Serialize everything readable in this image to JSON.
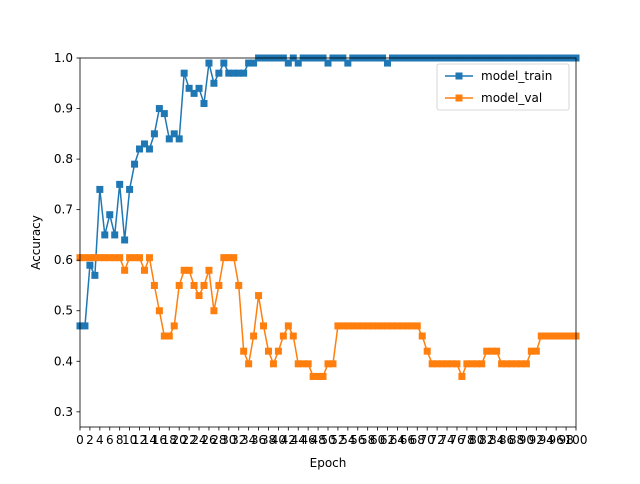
{
  "chart_data": {
    "type": "line",
    "title": "",
    "xlabel": "Epoch",
    "ylabel": "Accuracy",
    "xlim": [
      0,
      100
    ],
    "ylim": [
      0.27,
      1.0
    ],
    "y_ticks": [
      0.3,
      0.4,
      0.5,
      0.6,
      0.7,
      0.8,
      0.9,
      1.0
    ],
    "y_tick_labels": [
      "0.3",
      "0.4",
      "0.5",
      "0.6",
      "0.7",
      "0.8",
      "0.9",
      "1.0"
    ],
    "x_tick_step": 2,
    "grid": false,
    "legend_position": "top-right",
    "x": [
      0,
      1,
      2,
      3,
      4,
      5,
      6,
      7,
      8,
      9,
      10,
      11,
      12,
      13,
      14,
      15,
      16,
      17,
      18,
      19,
      20,
      21,
      22,
      23,
      24,
      25,
      26,
      27,
      28,
      29,
      30,
      31,
      32,
      33,
      34,
      35,
      36,
      37,
      38,
      39,
      40,
      41,
      42,
      43,
      44,
      45,
      46,
      47,
      48,
      49,
      50,
      51,
      52,
      53,
      54,
      55,
      56,
      57,
      58,
      59,
      60,
      61,
      62,
      63,
      64,
      65,
      66,
      67,
      68,
      69,
      70,
      71,
      72,
      73,
      74,
      75,
      76,
      77,
      78,
      79,
      80,
      81,
      82,
      83,
      84,
      85,
      86,
      87,
      88,
      89,
      90,
      91,
      92,
      93,
      94,
      95,
      96,
      97,
      98,
      99,
      100
    ],
    "series": [
      {
        "name": "model_train",
        "color": "#1f77b4",
        "marker": "square",
        "values": [
          0.47,
          0.47,
          0.59,
          0.57,
          0.74,
          0.65,
          0.69,
          0.65,
          0.75,
          0.64,
          0.74,
          0.79,
          0.82,
          0.83,
          0.82,
          0.85,
          0.9,
          0.89,
          0.84,
          0.85,
          0.84,
          0.97,
          0.94,
          0.93,
          0.94,
          0.91,
          0.99,
          0.95,
          0.97,
          0.99,
          0.97,
          0.97,
          0.97,
          0.97,
          0.99,
          0.99,
          1.0,
          1.0,
          1.0,
          1.0,
          1.0,
          1.0,
          0.99,
          1.0,
          0.99,
          1.0,
          1.0,
          1.0,
          1.0,
          1.0,
          0.99,
          1.0,
          1.0,
          1.0,
          0.99,
          1.0,
          1.0,
          1.0,
          1.0,
          1.0,
          1.0,
          1.0,
          0.99,
          1.0,
          1.0,
          1.0,
          1.0,
          1.0,
          1.0,
          1.0,
          1.0,
          1.0,
          1.0,
          1.0,
          1.0,
          1.0,
          1.0,
          1.0,
          1.0,
          1.0,
          1.0,
          1.0,
          1.0,
          1.0,
          1.0,
          1.0,
          1.0,
          1.0,
          1.0,
          1.0,
          1.0,
          1.0,
          1.0,
          1.0,
          1.0,
          1.0,
          1.0,
          1.0,
          1.0,
          1.0,
          1.0
        ]
      },
      {
        "name": "model_val",
        "color": "#ff7f0e",
        "marker": "square",
        "values": [
          0.605,
          0.605,
          0.605,
          0.605,
          0.605,
          0.605,
          0.605,
          0.605,
          0.605,
          0.58,
          0.605,
          0.605,
          0.605,
          0.58,
          0.605,
          0.55,
          0.5,
          0.45,
          0.45,
          0.47,
          0.55,
          0.58,
          0.58,
          0.55,
          0.53,
          0.55,
          0.58,
          0.5,
          0.55,
          0.605,
          0.605,
          0.605,
          0.55,
          0.42,
          0.395,
          0.45,
          0.53,
          0.47,
          0.42,
          0.395,
          0.42,
          0.45,
          0.47,
          0.45,
          0.395,
          0.395,
          0.395,
          0.37,
          0.37,
          0.37,
          0.395,
          0.395,
          0.47,
          0.47,
          0.47,
          0.47,
          0.47,
          0.47,
          0.47,
          0.47,
          0.47,
          0.47,
          0.47,
          0.47,
          0.47,
          0.47,
          0.47,
          0.47,
          0.47,
          0.45,
          0.42,
          0.395,
          0.395,
          0.395,
          0.395,
          0.395,
          0.395,
          0.37,
          0.395,
          0.395,
          0.395,
          0.395,
          0.42,
          0.42,
          0.42,
          0.395,
          0.395,
          0.395,
          0.395,
          0.395,
          0.395,
          0.42,
          0.42,
          0.45,
          0.45,
          0.45,
          0.45,
          0.45,
          0.45,
          0.45,
          0.45
        ]
      }
    ]
  }
}
